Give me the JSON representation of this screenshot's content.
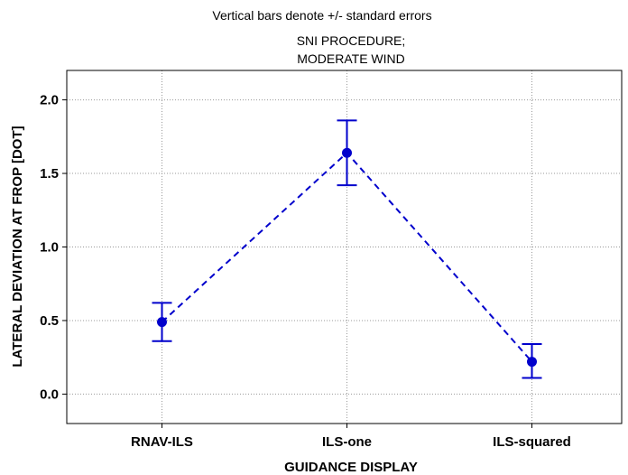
{
  "chart_data": {
    "type": "line",
    "title": "Vertical bars denote +/- standard errors",
    "subtitle_lines": [
      "SNI PROCEDURE;",
      "MODERATE WIND"
    ],
    "xlabel": "GUIDANCE DISPLAY",
    "ylabel": "LATERAL DEVIATION AT FROP [DOT]",
    "categories": [
      "RNAV-ILS",
      "ILS-one",
      "ILS-squared"
    ],
    "values": [
      0.49,
      1.64,
      0.22
    ],
    "error_lower": [
      0.36,
      1.42,
      0.11
    ],
    "error_upper": [
      0.62,
      1.86,
      0.34
    ],
    "ylim": [
      -0.2,
      2.2
    ],
    "yticks": [
      "0.0",
      "0.5",
      "1.0",
      "1.5",
      "2.0"
    ],
    "grid": true,
    "line_style": "dashed",
    "marker": "circle",
    "color": "#0000cc"
  }
}
